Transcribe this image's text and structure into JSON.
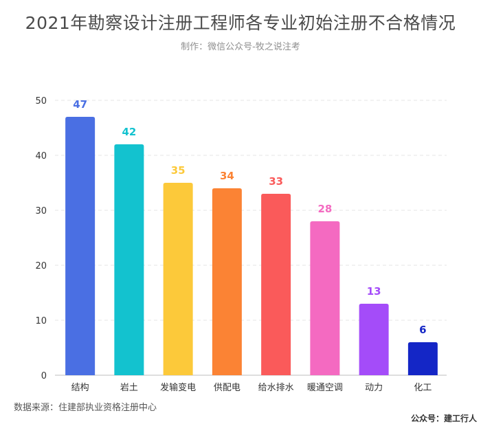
{
  "header": {
    "title": "2021年勘察设计注册工程师各专业初始注册不合格情况",
    "subtitle": "制作：微信公众号-牧之说注考"
  },
  "footer": {
    "source": "数据来源：住建部执业资格注册中心",
    "brand": "公众号：建工行人"
  },
  "chart_data": {
    "type": "bar",
    "title": "2021年勘察设计注册工程师各专业初始注册不合格情况",
    "subtitle": "制作：微信公众号-牧之说注考",
    "categories": [
      "结构",
      "岩土",
      "发输变电",
      "供配电",
      "给水排水",
      "暖通空调",
      "动力",
      "化工"
    ],
    "values": [
      47,
      42,
      35,
      34,
      33,
      28,
      13,
      6
    ],
    "colors": [
      "#4a6fe3",
      "#13c2cf",
      "#fcc93a",
      "#fb8334",
      "#fa5a5a",
      "#f46ac1",
      "#a44cf9",
      "#1426c6"
    ],
    "xlabel": "",
    "ylabel": "",
    "ylim": [
      0,
      50
    ],
    "yticks": [
      0,
      10,
      20,
      30,
      40,
      50
    ],
    "grid": true,
    "data_labels": true
  }
}
